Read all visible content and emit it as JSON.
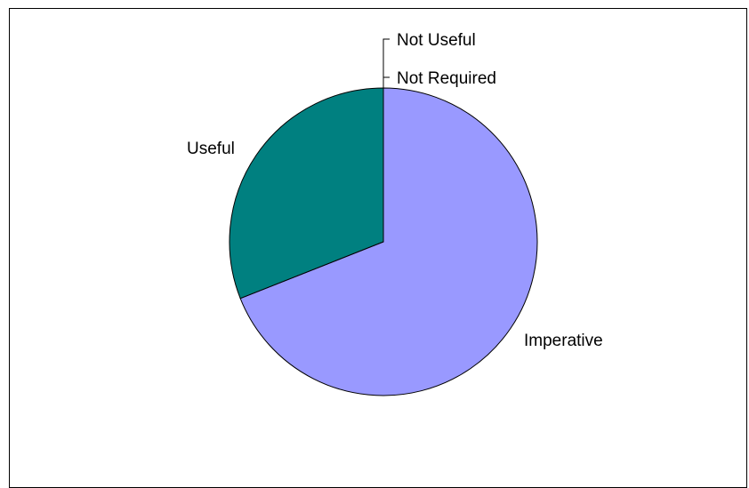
{
  "chart_data": {
    "type": "pie",
    "title": "",
    "slices": [
      {
        "label": "Imperative",
        "value": 69.0,
        "color": "#9999ff"
      },
      {
        "label": "Useful",
        "value": 31.0,
        "color": "#008080"
      },
      {
        "label": "Not Required",
        "value": 0.0,
        "color": "#993366"
      },
      {
        "label": "Not Useful",
        "value": 0.0,
        "color": "#ffffcc"
      }
    ],
    "legend": "none"
  }
}
